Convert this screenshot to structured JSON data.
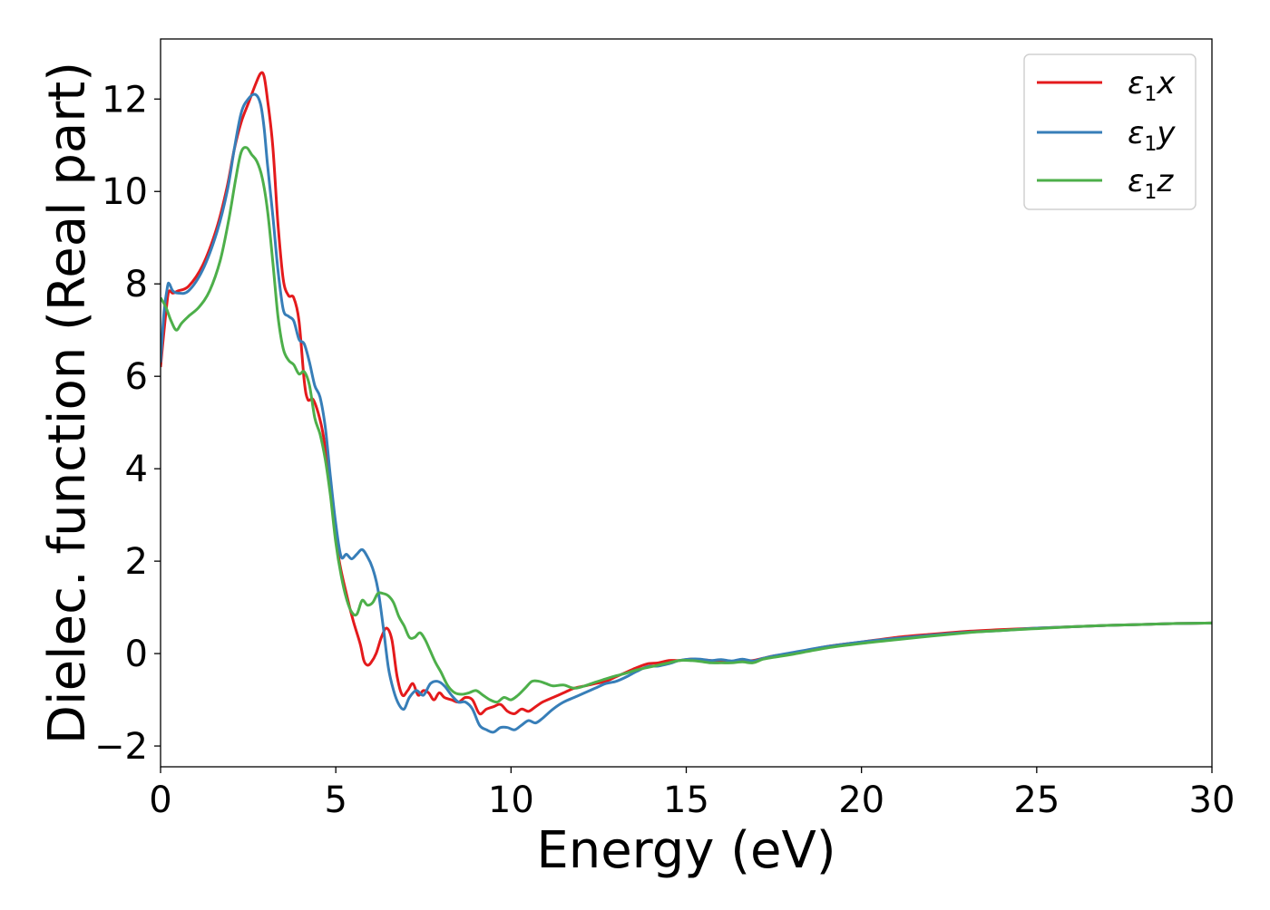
{
  "chart_data": {
    "type": "line",
    "title": "",
    "xlabel": "Energy (eV)",
    "ylabel": "Dielec. function (Real part)",
    "xlim": [
      0,
      30
    ],
    "ylim": [
      -2.45,
      13.3
    ],
    "xticks": [
      0,
      5,
      10,
      15,
      20,
      25,
      30
    ],
    "yticks": [
      -2,
      0,
      2,
      4,
      6,
      8,
      10,
      12
    ],
    "grid": false,
    "legend": {
      "placement": "top-right",
      "entries": [
        {
          "symbol": "ε",
          "sub": "1",
          "var": "x"
        },
        {
          "symbol": "ε",
          "sub": "1",
          "var": "y"
        },
        {
          "symbol": "ε",
          "sub": "1",
          "var": "z"
        }
      ]
    },
    "series": [
      {
        "name": "ε1x",
        "color": "#e41a1c",
        "x": [
          0,
          0.1,
          0.2,
          0.25,
          0.35,
          0.5,
          0.8,
          1.2,
          1.6,
          1.9,
          2.1,
          2.3,
          2.5,
          2.7,
          2.85,
          2.95,
          3.05,
          3.2,
          3.35,
          3.5,
          3.65,
          3.8,
          3.95,
          4.1,
          4.2,
          4.35,
          4.5,
          4.65,
          4.8,
          4.95,
          5.1,
          5.3,
          5.5,
          5.7,
          5.8,
          5.9,
          6.0,
          6.15,
          6.3,
          6.45,
          6.6,
          6.75,
          6.9,
          7.05,
          7.2,
          7.35,
          7.5,
          7.65,
          7.8,
          7.95,
          8.1,
          8.3,
          8.5,
          8.7,
          8.9,
          9.1,
          9.3,
          9.5,
          9.7,
          9.9,
          10.1,
          10.3,
          10.5,
          10.7,
          10.9,
          11.2,
          11.5,
          11.8,
          12.1,
          12.4,
          12.7,
          13.0,
          13.3,
          13.6,
          13.9,
          14.2,
          14.5,
          14.8,
          15.1,
          15.4,
          15.7,
          16.0,
          16.3,
          16.6,
          16.9,
          17.2,
          17.5,
          18.0,
          19.0,
          20.0,
          21.0,
          22.0,
          23.0,
          24.0,
          25.0,
          26.0,
          27.0,
          28.0,
          29.0,
          30.0
        ],
        "y": [
          6.2,
          7.0,
          7.7,
          7.85,
          7.8,
          7.85,
          7.95,
          8.4,
          9.2,
          10.1,
          10.9,
          11.5,
          11.9,
          12.3,
          12.55,
          12.5,
          12.0,
          11.0,
          9.3,
          8.1,
          7.75,
          7.7,
          7.2,
          5.9,
          5.5,
          5.5,
          5.2,
          4.7,
          3.8,
          2.9,
          2.0,
          1.3,
          0.7,
          0.2,
          -0.15,
          -0.25,
          -0.2,
          0.0,
          0.35,
          0.55,
          0.3,
          -0.5,
          -0.9,
          -0.8,
          -0.65,
          -0.9,
          -0.8,
          -0.85,
          -1.0,
          -0.85,
          -0.95,
          -1.0,
          -1.05,
          -0.95,
          -1.0,
          -1.3,
          -1.2,
          -1.15,
          -1.1,
          -1.25,
          -1.3,
          -1.2,
          -1.25,
          -1.15,
          -1.05,
          -0.95,
          -0.85,
          -0.75,
          -0.7,
          -0.65,
          -0.6,
          -0.5,
          -0.4,
          -0.3,
          -0.22,
          -0.2,
          -0.15,
          -0.15,
          -0.12,
          -0.13,
          -0.15,
          -0.18,
          -0.18,
          -0.15,
          -0.15,
          -0.1,
          -0.05,
          0.0,
          0.15,
          0.25,
          0.35,
          0.42,
          0.48,
          0.52,
          0.55,
          0.58,
          0.61,
          0.63,
          0.65,
          0.66
        ]
      },
      {
        "name": "ε1y",
        "color": "#377eb8",
        "x": [
          0,
          0.1,
          0.2,
          0.25,
          0.35,
          0.5,
          0.8,
          1.2,
          1.6,
          1.9,
          2.1,
          2.3,
          2.5,
          2.7,
          2.85,
          2.95,
          3.05,
          3.2,
          3.35,
          3.5,
          3.65,
          3.8,
          3.95,
          4.1,
          4.25,
          4.4,
          4.55,
          4.7,
          4.85,
          5.0,
          5.15,
          5.3,
          5.45,
          5.6,
          5.75,
          5.9,
          6.05,
          6.2,
          6.35,
          6.5,
          6.65,
          6.8,
          6.95,
          7.1,
          7.3,
          7.5,
          7.7,
          7.9,
          8.1,
          8.3,
          8.5,
          8.7,
          8.9,
          9.1,
          9.3,
          9.5,
          9.7,
          9.9,
          10.1,
          10.3,
          10.5,
          10.7,
          10.9,
          11.2,
          11.5,
          11.8,
          12.1,
          12.4,
          12.7,
          13.0,
          13.3,
          13.6,
          13.9,
          14.2,
          14.5,
          14.8,
          15.1,
          15.4,
          15.7,
          16.0,
          16.3,
          16.6,
          16.9,
          17.2,
          17.5,
          18.0,
          19.0,
          20.0,
          21.0,
          22.0,
          23.0,
          24.0,
          25.0,
          26.0,
          27.0,
          28.0,
          29.0,
          30.0
        ],
        "y": [
          6.3,
          7.4,
          7.95,
          8.0,
          7.85,
          7.8,
          7.85,
          8.3,
          9.1,
          10.0,
          10.9,
          11.7,
          12.0,
          12.1,
          11.9,
          11.4,
          10.6,
          9.5,
          8.3,
          7.45,
          7.3,
          7.2,
          6.8,
          6.7,
          6.3,
          5.8,
          5.55,
          4.9,
          3.8,
          2.8,
          2.1,
          2.15,
          2.05,
          2.15,
          2.25,
          2.1,
          1.85,
          1.4,
          0.6,
          -0.3,
          -0.8,
          -1.1,
          -1.2,
          -0.95,
          -0.8,
          -0.9,
          -0.65,
          -0.6,
          -0.7,
          -0.9,
          -1.05,
          -1.05,
          -1.2,
          -1.55,
          -1.65,
          -1.7,
          -1.6,
          -1.6,
          -1.65,
          -1.55,
          -1.45,
          -1.5,
          -1.4,
          -1.2,
          -1.05,
          -0.95,
          -0.85,
          -0.75,
          -0.65,
          -0.6,
          -0.5,
          -0.38,
          -0.28,
          -0.27,
          -0.22,
          -0.15,
          -0.12,
          -0.12,
          -0.15,
          -0.13,
          -0.16,
          -0.12,
          -0.16,
          -0.1,
          -0.05,
          0.02,
          0.15,
          0.25,
          0.33,
          0.4,
          0.46,
          0.5,
          0.55,
          0.58,
          0.61,
          0.63,
          0.65,
          0.66
        ]
      },
      {
        "name": "ε1z",
        "color": "#4daf4a",
        "x": [
          0,
          0.15,
          0.3,
          0.45,
          0.6,
          0.8,
          1.1,
          1.4,
          1.7,
          1.95,
          2.15,
          2.3,
          2.45,
          2.6,
          2.75,
          2.9,
          3.05,
          3.2,
          3.35,
          3.5,
          3.65,
          3.8,
          3.95,
          4.1,
          4.25,
          4.4,
          4.55,
          4.7,
          4.85,
          5.0,
          5.15,
          5.3,
          5.45,
          5.6,
          5.75,
          5.9,
          6.05,
          6.2,
          6.35,
          6.5,
          6.65,
          6.8,
          6.95,
          7.1,
          7.25,
          7.4,
          7.55,
          7.7,
          7.85,
          8.0,
          8.2,
          8.4,
          8.6,
          8.8,
          9.0,
          9.2,
          9.4,
          9.6,
          9.8,
          10.0,
          10.2,
          10.4,
          10.6,
          10.8,
          11.0,
          11.2,
          11.5,
          11.8,
          12.1,
          12.4,
          12.7,
          13.0,
          13.3,
          13.6,
          13.9,
          14.2,
          14.5,
          14.8,
          15.1,
          15.4,
          15.7,
          16.0,
          16.3,
          16.6,
          16.9,
          17.2,
          17.5,
          18.0,
          19.0,
          20.0,
          21.0,
          22.0,
          23.0,
          24.0,
          25.0,
          26.0,
          27.0,
          28.0,
          29.0,
          30.0
        ],
        "y": [
          7.7,
          7.5,
          7.2,
          7.0,
          7.15,
          7.3,
          7.5,
          7.85,
          8.5,
          9.4,
          10.3,
          10.85,
          10.95,
          10.8,
          10.65,
          10.3,
          9.6,
          8.5,
          7.3,
          6.6,
          6.35,
          6.25,
          6.05,
          6.1,
          5.8,
          5.1,
          4.75,
          4.2,
          3.4,
          2.4,
          1.7,
          1.2,
          0.9,
          0.85,
          1.15,
          1.05,
          1.1,
          1.3,
          1.3,
          1.25,
          1.1,
          0.8,
          0.6,
          0.35,
          0.35,
          0.45,
          0.3,
          0.05,
          -0.2,
          -0.4,
          -0.7,
          -0.85,
          -0.88,
          -0.85,
          -0.8,
          -0.9,
          -1.0,
          -1.05,
          -0.95,
          -1.0,
          -0.9,
          -0.75,
          -0.6,
          -0.6,
          -0.65,
          -0.7,
          -0.68,
          -0.75,
          -0.7,
          -0.62,
          -0.55,
          -0.48,
          -0.42,
          -0.35,
          -0.3,
          -0.25,
          -0.2,
          -0.15,
          -0.15,
          -0.17,
          -0.2,
          -0.2,
          -0.2,
          -0.18,
          -0.2,
          -0.12,
          -0.08,
          -0.02,
          0.12,
          0.22,
          0.3,
          0.38,
          0.45,
          0.5,
          0.54,
          0.58,
          0.61,
          0.63,
          0.65,
          0.66
        ]
      }
    ]
  }
}
